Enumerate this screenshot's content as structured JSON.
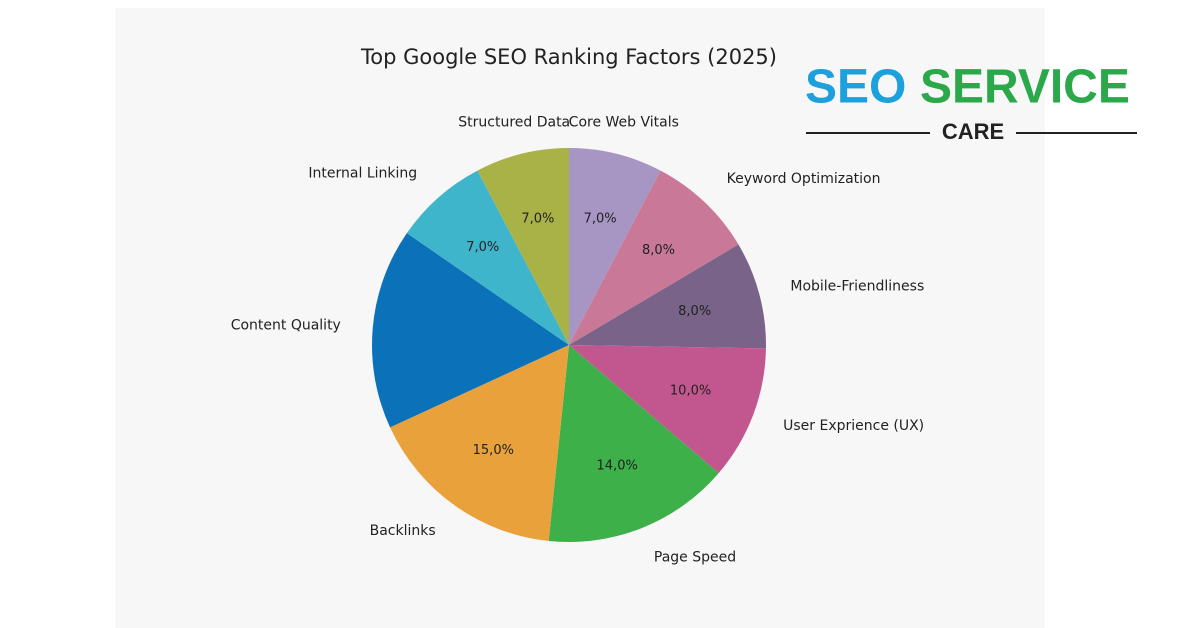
{
  "chart_data": {
    "type": "pie",
    "title": "Top Google SEO Ranking Factors (2025)",
    "categories": [
      "Core Web Vitals",
      "Keyword Optimization",
      "Mobile-Friendliness",
      "User  Exprience (UX)",
      "Page Speed",
      "Backlinks",
      "Content Quality",
      "Internal Linking",
      "Structured Data"
    ],
    "values": [
      7,
      8,
      8,
      10,
      14,
      15,
      15,
      7,
      7
    ],
    "value_labels": [
      "7,0%",
      "8,0%",
      "8,0%",
      "10,0%",
      "14,0%",
      "15,0%",
      null,
      "7,0%",
      "7,0%"
    ],
    "colors": [
      "#a796c4",
      "#c97898",
      "#7a6389",
      "#c2578f",
      "#3db04a",
      "#e9a23b",
      "#0b72b9",
      "#3fb5cc",
      "#a8b246"
    ]
  },
  "logo": {
    "brand": "SEO",
    "name": "SERVICE",
    "sub": "CARE"
  }
}
